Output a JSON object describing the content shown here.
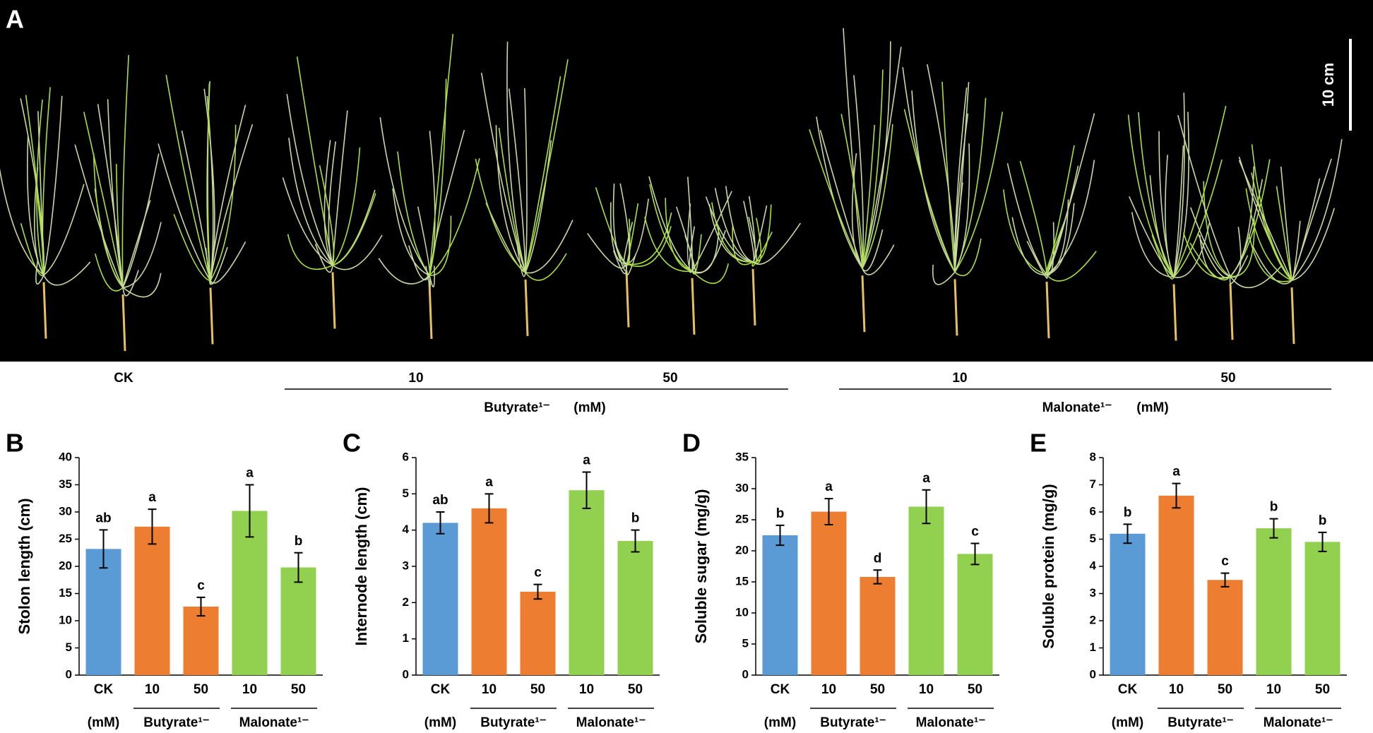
{
  "panel_a": {
    "label": "A",
    "scale_bar": "10 cm",
    "concentrations": [
      "CK",
      "10",
      "50",
      "10",
      "50"
    ],
    "treatments": [
      {
        "name": "Butyrate¹⁻",
        "unit": "(mM)"
      },
      {
        "name": "Malonate¹⁻",
        "unit": "(mM)"
      }
    ]
  },
  "chart_data": [
    {
      "type": "bar",
      "panel": "B",
      "ylabel": "Stolon length (cm)",
      "categories": [
        "CK",
        "10",
        "50",
        "10",
        "50"
      ],
      "values": [
        23.2,
        27.3,
        12.6,
        30.2,
        19.8
      ],
      "errors": [
        3.5,
        3.2,
        1.7,
        4.8,
        2.7
      ],
      "annotations": [
        "ab",
        "a",
        "c",
        "a",
        "b"
      ],
      "colors": [
        "#5b9bd5",
        "#ed7d31",
        "#ed7d31",
        "#92d050",
        "#92d050"
      ],
      "group_labels": [
        "(mM)",
        "Butyrate¹⁻",
        "Malonate¹⁻"
      ],
      "ylim": [
        0,
        40
      ],
      "yticks": [
        0,
        5,
        10,
        15,
        20,
        25,
        30,
        35,
        40
      ]
    },
    {
      "type": "bar",
      "panel": "C",
      "ylabel": "Internode length (cm)",
      "categories": [
        "CK",
        "10",
        "50",
        "10",
        "50"
      ],
      "values": [
        4.2,
        4.6,
        2.3,
        5.1,
        3.7
      ],
      "errors": [
        0.3,
        0.4,
        0.2,
        0.5,
        0.3
      ],
      "annotations": [
        "ab",
        "a",
        "c",
        "a",
        "b"
      ],
      "colors": [
        "#5b9bd5",
        "#ed7d31",
        "#ed7d31",
        "#92d050",
        "#92d050"
      ],
      "group_labels": [
        "(mM)",
        "Butyrate¹⁻",
        "Malonate¹⁻"
      ],
      "ylim": [
        0,
        6
      ],
      "yticks": [
        0,
        1,
        2,
        3,
        4,
        5,
        6
      ]
    },
    {
      "type": "bar",
      "panel": "D",
      "ylabel": "Soluble sugar (mg/g)",
      "categories": [
        "CK",
        "10",
        "50",
        "10",
        "50"
      ],
      "values": [
        22.5,
        26.3,
        15.8,
        27.1,
        19.5
      ],
      "errors": [
        1.6,
        2.1,
        1.1,
        2.7,
        1.7
      ],
      "annotations": [
        "b",
        "a",
        "d",
        "a",
        "c"
      ],
      "colors": [
        "#5b9bd5",
        "#ed7d31",
        "#ed7d31",
        "#92d050",
        "#92d050"
      ],
      "group_labels": [
        "(mM)",
        "Butyrate¹⁻",
        "Malonate¹⁻"
      ],
      "ylim": [
        0,
        35
      ],
      "yticks": [
        0,
        5,
        10,
        15,
        20,
        25,
        30,
        35
      ]
    },
    {
      "type": "bar",
      "panel": "E",
      "ylabel": "Soluble protein (mg/g)",
      "categories": [
        "CK",
        "10",
        "50",
        "10",
        "50"
      ],
      "values": [
        5.2,
        6.6,
        3.5,
        5.4,
        4.9
      ],
      "errors": [
        0.35,
        0.45,
        0.25,
        0.35,
        0.35
      ],
      "annotations": [
        "b",
        "a",
        "c",
        "b",
        "b"
      ],
      "colors": [
        "#5b9bd5",
        "#ed7d31",
        "#ed7d31",
        "#92d050",
        "#92d050"
      ],
      "group_labels": [
        "(mM)",
        "Butyrate¹⁻",
        "Malonate¹⁻"
      ],
      "ylim": [
        0,
        8
      ],
      "yticks": [
        0,
        1,
        2,
        3,
        4,
        5,
        6,
        7,
        8
      ]
    }
  ]
}
